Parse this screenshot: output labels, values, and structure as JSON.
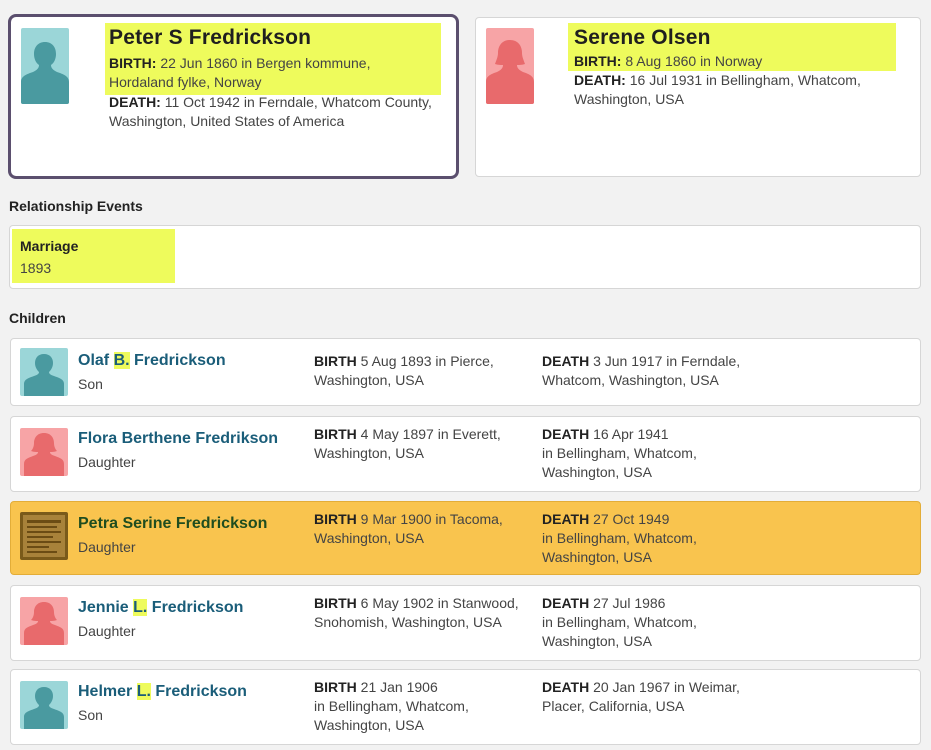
{
  "father": {
    "name": "Peter S Fredrickson",
    "birth_label": "BIRTH:",
    "birth_line1": "22 Jun 1860 in Bergen kommune,",
    "birth_line2": "Hordaland fylke, Norway",
    "death_label": "DEATH:",
    "death_line1": "11 Oct 1942 in Ferndale, Whatcom County,",
    "death_line2": "Washington, United States of America"
  },
  "mother": {
    "name": "Serene Olsen",
    "birth_label": "BIRTH:",
    "birth_line1": "8 Aug 1860 in Norway",
    "death_label": "DEATH:",
    "death_line1": "16 Jul 1931 in Bellingham, Whatcom,",
    "death_line2": "Washington, USA"
  },
  "relationship": {
    "section_title": "Relationship Events",
    "event_label": "Marriage",
    "event_date": "1893"
  },
  "children_section": {
    "title": "Children"
  },
  "children": [
    {
      "first": "Olaf ",
      "middle": "B.",
      "last": " Fredrickson",
      "role": "Son",
      "birth_label": "BIRTH",
      "birth_text": " 5 Aug 1893  in Pierce,\nWashington, USA",
      "death_label": "DEATH",
      "death_text": " 3 Jun 1917  in Ferndale,\nWhatcom, Washington, USA"
    },
    {
      "first": "Flora Berthene Fredrikson",
      "middle": "",
      "last": "",
      "role": "Daughter",
      "birth_label": "BIRTH",
      "birth_text": " 4 May 1897  in Everett,\nWashington, USA",
      "death_label": "DEATH",
      "death_text": " 16 Apr 1941\n in Bellingham, Whatcom,\nWashington, USA"
    },
    {
      "first": "Petra Serine Fredrickson",
      "middle": "",
      "last": "",
      "role": "Daughter",
      "birth_label": "BIRTH",
      "birth_text": " 9 Mar 1900  in Tacoma,\nWashington, USA",
      "death_label": "DEATH",
      "death_text": " 27 Oct 1949\n in Bellingham, Whatcom,\nWashington, USA"
    },
    {
      "first": "Jennie ",
      "middle": "L.",
      "last": " Fredrickson",
      "role": "Daughter",
      "birth_label": "BIRTH",
      "birth_text": " 6 May 1902  in Stanwood,\nSnohomish, Washington, USA",
      "death_label": "DEATH",
      "death_text": " 27 Jul 1986\n in Bellingham, Whatcom,\nWashington, USA"
    },
    {
      "first": "Helmer ",
      "middle": "L.",
      "last": " Fredrickson",
      "role": "Son",
      "birth_label": "BIRTH",
      "birth_text": " 21 Jan 1906\n in Bellingham, Whatcom,\nWashington, USA",
      "death_label": "DEATH",
      "death_text": " 20 Jan 1967  in Weimar,\nPlacer, California, USA"
    }
  ],
  "colors": {
    "link": "#1a5d79",
    "highlight": "#eefb5c",
    "selected_row": "#f9c44e",
    "focus_border": "#5b4f6e"
  }
}
